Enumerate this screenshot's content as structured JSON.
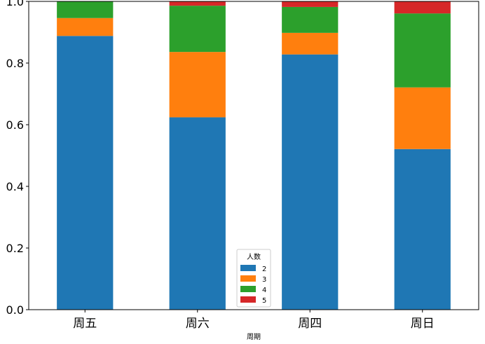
{
  "chart_data": {
    "type": "bar",
    "stacked": true,
    "categories": [
      "周五",
      "周六",
      "周四",
      "周日"
    ],
    "series": [
      {
        "name": "2",
        "color": "#1f77b4",
        "values": [
          0.888,
          0.624,
          0.828,
          0.521
        ]
      },
      {
        "name": "3",
        "color": "#ff7f0e",
        "values": [
          0.058,
          0.212,
          0.07,
          0.2
        ]
      },
      {
        "name": "4",
        "color": "#2ca02c",
        "values": [
          0.054,
          0.15,
          0.084,
          0.24
        ]
      },
      {
        "name": "5",
        "color": "#d62728",
        "values": [
          0.0,
          0.014,
          0.018,
          0.039
        ]
      }
    ],
    "xlabel": "周期",
    "ylabel": "",
    "ylim": [
      0,
      1.0
    ],
    "yticks": [
      "0.0",
      "0.2",
      "0.4",
      "0.6",
      "0.8",
      "1.0"
    ],
    "legend": {
      "title": "人数",
      "position": "bottom-center"
    },
    "grid": false
  }
}
